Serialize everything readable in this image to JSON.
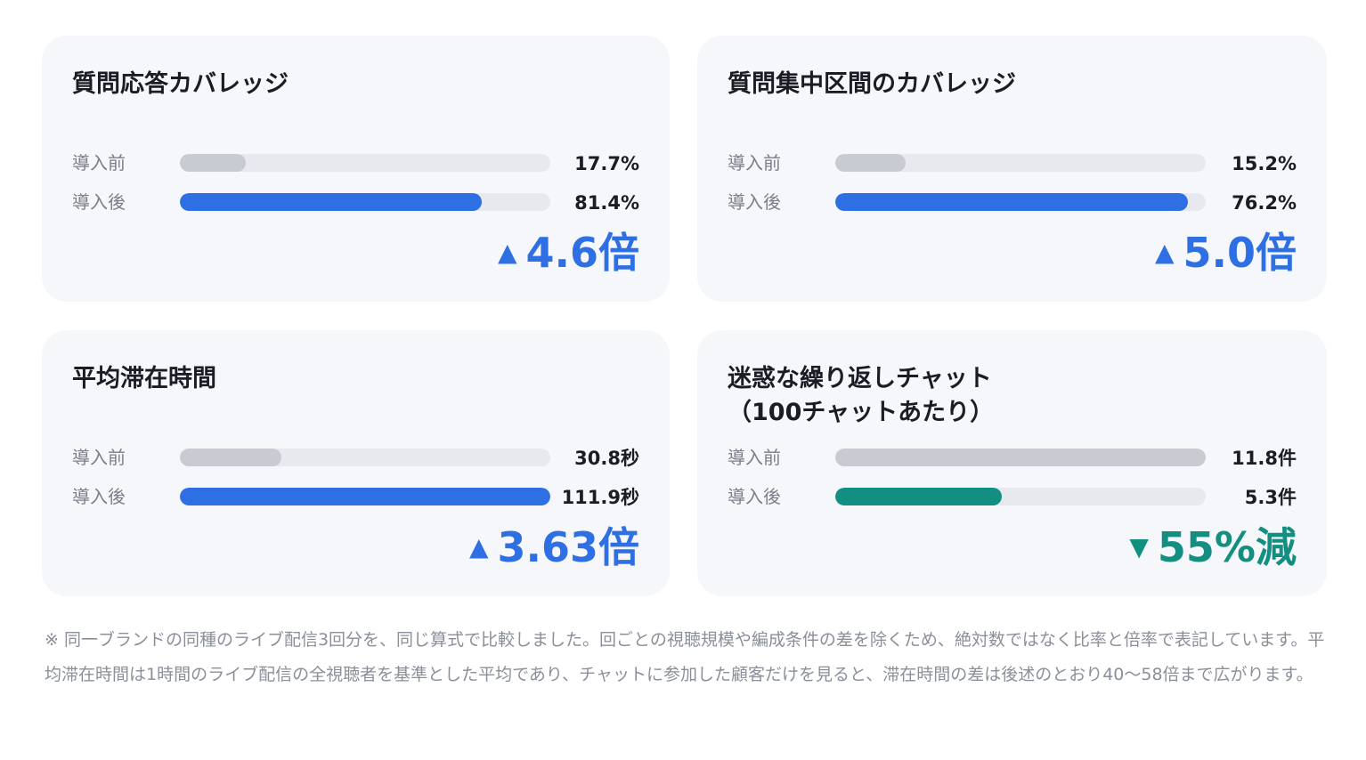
{
  "colors": {
    "before_fill": "#c9cbd2",
    "track": "#e7e9ee",
    "after_blue": "#2f6fe4",
    "after_green": "#138f82",
    "up_text": "#2f6fe4",
    "down_text": "#138f82"
  },
  "labels": {
    "before": "導入前",
    "after": "導入後"
  },
  "chart_data": [
    {
      "type": "bar",
      "title": "質問応答カバレッジ",
      "categories": [
        "導入前",
        "導入後"
      ],
      "values": [
        17.7,
        81.4
      ],
      "value_labels": [
        "17.7%",
        "81.4%"
      ],
      "ylim": [
        0,
        100
      ],
      "after_color": "#2f6fe4",
      "change": {
        "direction": "up",
        "arrow": "▲",
        "label": "4.6倍"
      }
    },
    {
      "type": "bar",
      "title": "質問集中区間のカバレッジ",
      "categories": [
        "導入前",
        "導入後"
      ],
      "values": [
        15.2,
        76.2
      ],
      "value_labels": [
        "15.2%",
        "76.2%"
      ],
      "ylim": [
        0,
        80
      ],
      "after_color": "#2f6fe4",
      "change": {
        "direction": "up",
        "arrow": "▲",
        "label": "5.0倍"
      }
    },
    {
      "type": "bar",
      "title": "平均滞在時間",
      "categories": [
        "導入前",
        "導入後"
      ],
      "values": [
        30.8,
        111.9
      ],
      "value_labels": [
        "30.8秒",
        "111.9秒"
      ],
      "ylim": [
        0,
        112
      ],
      "after_color": "#2f6fe4",
      "change": {
        "direction": "up",
        "arrow": "▲",
        "label": "3.63倍"
      }
    },
    {
      "type": "bar",
      "title": "迷惑な繰り返しチャット\n（100チャットあたり）",
      "categories": [
        "導入前",
        "導入後"
      ],
      "values": [
        11.8,
        5.3
      ],
      "value_labels": [
        "11.8件",
        "5.3件"
      ],
      "ylim": [
        0,
        11.8
      ],
      "after_color": "#138f82",
      "change": {
        "direction": "down",
        "arrow": "▼",
        "label": "55%減"
      }
    }
  ],
  "note": "※ 同一ブランドの同種のライブ配信3回分を、同じ算式で比較しました。回ごとの視聴規模や編成条件の差を除くため、絶対数ではなく比率と倍率で表記しています。平均滞在時間は1時間のライブ配信の全視聴者を基準とした平均であり、チャットに参加した顧客だけを見ると、滞在時間の差は後述のとおり40〜58倍まで広がります。"
}
